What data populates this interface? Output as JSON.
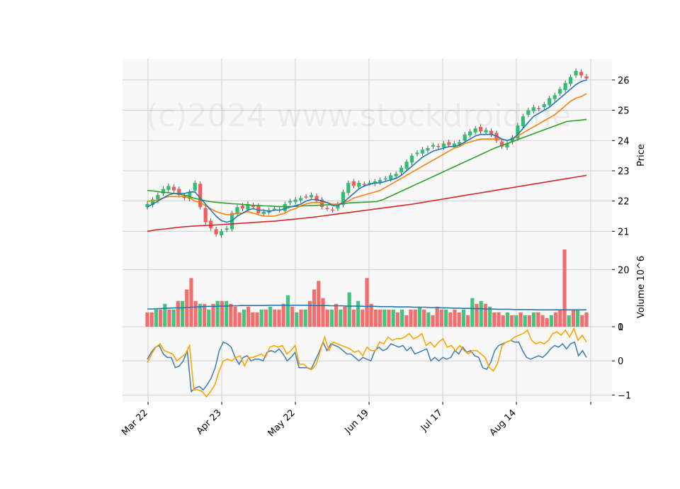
{
  "watermark": "(c)2024 www.stockdroid.ne",
  "chart_data": {
    "type": "candlestick",
    "colors": {
      "up": "#2fbf71",
      "down": "#f25e5e",
      "grid": "#cfcfcf",
      "panel_bg": "#f8f8f8",
      "ma_short": "#1f77b4",
      "ma_mid": "#ff7f0e",
      "ma_long": "#2ca02c",
      "ma_longest": "#d62728",
      "vol_avg": "#1f77b4",
      "osc_a": "#4682b4",
      "osc_b": "#ffa500"
    },
    "x_tick_labels": [
      "Mar 22",
      "Apr 23",
      "May 22",
      "Jun 19",
      "Jul 17",
      "Aug 14"
    ],
    "price": {
      "ylabel": "Price",
      "ylim": [
        20.4,
        26.7
      ],
      "yticks": [
        "21",
        "22",
        "23",
        "24",
        "25",
        "26"
      ],
      "closes": [
        21.9,
        22.05,
        22.2,
        22.4,
        22.5,
        22.35,
        22.2,
        22.1,
        22.3,
        22.6,
        21.8,
        21.3,
        21.1,
        20.9,
        21.0,
        21.1,
        21.6,
        21.8,
        21.75,
        21.9,
        21.8,
        21.6,
        21.65,
        21.7,
        21.75,
        21.7,
        21.9,
        22.0,
        22.05,
        22.1,
        22.15,
        22.2,
        22.0,
        21.8,
        21.75,
        21.7,
        21.9,
        22.3,
        22.6,
        22.5,
        22.6,
        22.55,
        22.6,
        22.65,
        22.7,
        22.75,
        22.85,
        22.9,
        23.1,
        23.3,
        23.5,
        23.6,
        23.7,
        23.75,
        23.85,
        23.8,
        23.9,
        23.85,
        23.9,
        23.95,
        24.2,
        24.3,
        24.4,
        24.3,
        24.35,
        24.2,
        24.0,
        23.8,
        23.9,
        24.1,
        24.5,
        24.8,
        25.0,
        25.1,
        25.05,
        25.2,
        25.4,
        25.5,
        25.7,
        25.9,
        26.1,
        26.3,
        26.15,
        26.05
      ],
      "ma_short": [
        21.8,
        21.9,
        22.0,
        22.1,
        22.2,
        22.25,
        22.25,
        22.25,
        22.3,
        22.3,
        22.1,
        21.9,
        21.7,
        21.5,
        21.35,
        21.3,
        21.35,
        21.5,
        21.6,
        21.7,
        21.75,
        21.7,
        21.7,
        21.65,
        21.7,
        21.7,
        21.75,
        21.8,
        21.85,
        21.9,
        22.0,
        22.05,
        22.05,
        22.0,
        21.95,
        21.85,
        21.85,
        21.95,
        22.1,
        22.25,
        22.4,
        22.5,
        22.55,
        22.6,
        22.6,
        22.65,
        22.7,
        22.75,
        22.85,
        23.0,
        23.15,
        23.3,
        23.45,
        23.55,
        23.65,
        23.7,
        23.75,
        23.8,
        23.8,
        23.85,
        23.95,
        24.05,
        24.15,
        24.2,
        24.2,
        24.2,
        24.15,
        24.05,
        24.0,
        24.05,
        24.2,
        24.4,
        24.6,
        24.8,
        24.9,
        25.0,
        25.1,
        25.25,
        25.4,
        25.55,
        25.7,
        25.85,
        25.95,
        26.0
      ],
      "ma_mid": [
        22.0,
        22.0,
        22.05,
        22.1,
        22.15,
        22.15,
        22.15,
        22.15,
        22.1,
        22.0,
        21.95,
        21.85,
        21.75,
        21.65,
        21.6,
        21.55,
        21.55,
        21.6,
        21.6,
        21.65,
        21.6,
        21.55,
        21.5,
        21.5,
        21.5,
        21.55,
        21.6,
        21.7,
        21.75,
        21.85,
        21.9,
        21.95,
        21.95,
        21.95,
        21.95,
        21.9,
        21.9,
        21.95,
        22.0,
        22.1,
        22.15,
        22.2,
        22.25,
        22.3,
        22.35,
        22.45,
        22.55,
        22.65,
        22.75,
        22.85,
        22.95,
        23.05,
        23.15,
        23.25,
        23.35,
        23.45,
        23.55,
        23.65,
        23.75,
        23.8,
        23.9,
        23.95,
        24.0,
        24.05,
        24.05,
        24.05,
        24.05,
        24.05,
        24.0,
        24.05,
        24.15,
        24.25,
        24.35,
        24.45,
        24.55,
        24.65,
        24.75,
        24.85,
        25.0,
        25.15,
        25.3,
        25.4,
        25.45,
        25.55
      ],
      "ma_long": [
        22.35,
        22.33,
        22.3,
        22.28,
        22.25,
        22.22,
        22.18,
        22.1,
        22.05,
        22.0,
        21.97,
        21.95,
        21.93,
        21.91,
        21.9,
        21.88,
        21.86,
        21.85,
        21.84,
        21.83,
        21.82,
        21.82,
        21.82,
        21.83,
        21.84,
        21.85,
        21.86,
        21.87,
        21.88,
        21.9,
        21.92,
        21.94,
        21.95,
        21.96,
        21.97,
        21.98,
        22.05,
        22.15,
        22.25,
        22.35,
        22.45,
        22.55,
        22.65,
        22.75,
        22.85,
        22.95,
        23.05,
        23.15,
        23.25,
        23.35,
        23.45,
        23.55,
        23.65,
        23.75,
        23.83,
        23.91,
        23.99,
        24.07,
        24.15,
        24.23,
        24.31,
        24.39,
        24.47,
        24.55,
        24.63,
        24.65,
        24.67,
        24.7
      ],
      "ma_longest": [
        21.0,
        21.05,
        21.08,
        21.12,
        21.15,
        21.17,
        21.19,
        21.2,
        21.22,
        21.24,
        21.26,
        21.28,
        21.3,
        21.32,
        21.34,
        21.37,
        21.4,
        21.43,
        21.46,
        21.5,
        21.54,
        21.58,
        21.62,
        21.66,
        21.7,
        21.74,
        21.78,
        21.82,
        21.86,
        21.9,
        21.95,
        22.0,
        22.05,
        22.1,
        22.15,
        22.2,
        22.25,
        22.3,
        22.35,
        22.4,
        22.45,
        22.5,
        22.55,
        22.6,
        22.65,
        22.7,
        22.75,
        22.8,
        22.85
      ]
    },
    "volume": {
      "ylabel": "Volume  10^6",
      "ylim": [
        0,
        27
      ],
      "yticks": [
        "0",
        "20"
      ],
      "values": [
        5,
        5,
        6,
        6,
        8,
        6,
        6,
        9,
        9,
        13,
        17,
        9,
        8,
        8,
        6,
        8,
        9,
        9,
        9,
        8,
        7,
        5,
        6,
        7,
        5,
        5,
        6,
        6,
        7,
        6,
        6,
        8,
        11,
        7,
        5,
        6,
        6,
        9,
        13,
        16,
        10,
        6,
        6,
        8,
        6,
        7,
        12,
        6,
        9,
        6,
        17,
        8,
        6,
        6,
        6,
        6,
        6,
        5,
        6,
        4,
        6,
        6,
        7,
        6,
        5,
        4,
        7,
        6,
        6,
        5,
        6,
        5,
        6,
        4,
        10,
        8,
        9,
        8,
        7,
        5,
        5,
        4,
        5,
        4,
        4,
        5,
        4,
        4,
        5,
        5,
        4,
        3,
        4,
        5,
        6,
        27,
        4,
        6,
        6,
        4,
        5
      ],
      "avg": [
        6.2,
        6.2,
        6.3,
        6.4,
        6.5,
        6.6,
        6.6,
        6.7,
        6.8,
        6.9,
        7.0,
        7.1,
        7.1,
        7.2,
        7.2,
        7.3,
        7.3,
        7.4,
        7.4,
        7.4,
        7.4,
        7.4,
        7.5,
        7.5,
        7.5,
        7.5,
        7.5,
        7.5,
        7.5,
        7.5,
        7.4,
        7.4,
        7.4,
        7.3,
        7.3,
        7.3,
        7.2,
        7.2,
        7.2,
        7.1,
        7.1,
        7.1,
        7.0,
        7.0,
        7.0,
        6.9,
        6.9,
        6.9,
        6.8,
        6.8,
        6.8,
        6.7,
        6.7,
        6.6,
        6.6,
        6.5,
        6.5,
        6.4,
        6.4,
        6.3,
        6.3,
        6.2,
        6.2,
        6.1,
        6.1,
        6.1,
        6.0,
        6.0,
        6.0,
        6.0,
        5.9,
        5.9,
        5.9,
        5.9,
        5.9,
        5.9,
        5.9,
        5.9,
        5.9,
        5.9
      ]
    },
    "oscillator": {
      "ylim": [
        -1.2,
        1.0
      ],
      "yticks": [
        "1",
        "0",
        "−1"
      ],
      "series_a": [
        0.05,
        0.25,
        0.4,
        0.45,
        0.2,
        0.1,
        0.1,
        -0.2,
        -0.15,
        0.0,
        0.3,
        -0.9,
        -0.8,
        -0.75,
        -0.85,
        -0.7,
        -0.5,
        -0.2,
        0.3,
        0.55,
        0.5,
        0.4,
        0.1,
        -0.1,
        0.1,
        0.15,
        0.0,
        0.05,
        0.05,
        0.0,
        0.25,
        0.3,
        0.25,
        0.35,
        0.2,
        0.0,
        0.1,
        0.25,
        -0.2,
        -0.2,
        -0.2,
        -0.25,
        0.0,
        0.25,
        0.55,
        0.3,
        0.5,
        0.45,
        0.4,
        0.3,
        0.2,
        0.2,
        0.1,
        0.0,
        0.1,
        0.05,
        0.0,
        0.3,
        0.4,
        0.3,
        0.35,
        0.5,
        0.45,
        0.4,
        0.45,
        0.3,
        0.4,
        0.2,
        0.25,
        0.3,
        0.35,
        0.0,
        0.1,
        0.0,
        0.1,
        0.05,
        0.1,
        0.3,
        0.2,
        0.4,
        0.25,
        0.3,
        0.15,
        0.1,
        -0.2,
        -0.25,
        -0.05,
        0.3,
        0.45,
        0.5,
        0.55,
        0.6,
        0.55,
        0.55,
        0.3,
        0.1,
        0.05,
        0.1,
        0.15,
        0.1,
        0.2,
        0.35,
        0.45,
        0.4,
        0.5,
        0.35,
        0.5,
        0.55,
        0.15,
        0.3,
        0.1
      ],
      "series_b": [
        -0.05,
        0.2,
        0.4,
        0.5,
        0.3,
        0.25,
        0.2,
        0.0,
        0.1,
        0.2,
        0.45,
        -0.85,
        -0.85,
        -0.9,
        -1.05,
        -0.9,
        -0.7,
        -0.3,
        0.0,
        0.05,
        0.0,
        0.1,
        0.15,
        -0.15,
        0.1,
        0.1,
        0.15,
        0.2,
        0.1,
        0.4,
        0.45,
        0.4,
        0.45,
        0.2,
        0.3,
        0.45,
        -0.1,
        -0.1,
        -0.2,
        -0.25,
        -0.1,
        0.3,
        0.7,
        0.3,
        0.55,
        0.5,
        0.45,
        0.4,
        0.35,
        0.25,
        0.3,
        0.15,
        0.4,
        0.3,
        0.3,
        0.55,
        0.5,
        0.7,
        0.6,
        0.65,
        0.65,
        0.7,
        0.8,
        0.65,
        0.7,
        0.8,
        0.45,
        0.55,
        0.4,
        0.55,
        0.65,
        0.4,
        0.45,
        0.3,
        0.45,
        0.3,
        0.2,
        0.3,
        0.3,
        0.2,
        0.1,
        -0.2,
        -0.3,
        -0.05,
        0.45,
        0.55,
        0.6,
        0.7,
        0.75,
        0.8,
        0.9,
        0.6,
        0.5,
        0.55,
        0.5,
        0.6,
        0.8,
        0.85,
        0.75,
        0.9,
        0.7,
        0.95,
        0.6,
        0.75,
        0.55
      ]
    }
  }
}
